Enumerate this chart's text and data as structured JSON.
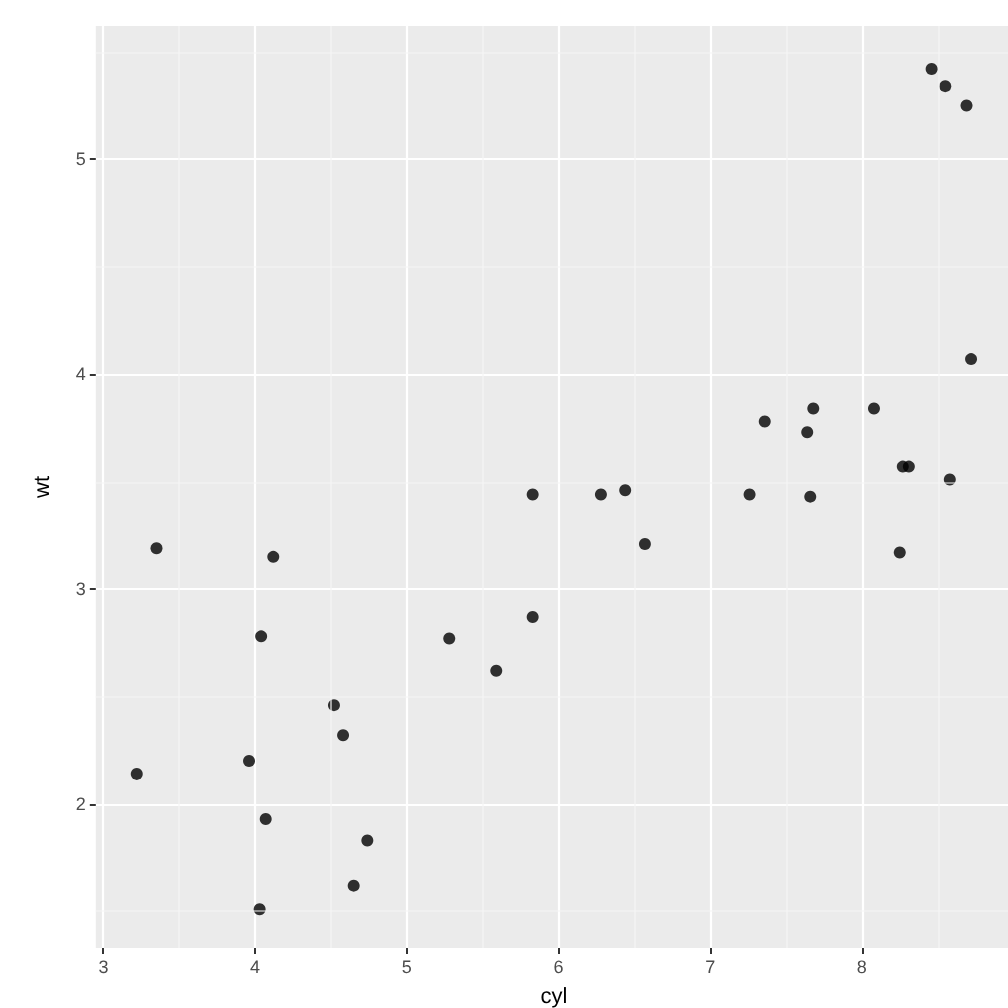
{
  "chart_data": {
    "type": "scatter",
    "xlabel": "cyl",
    "ylabel": "wt",
    "x": [
      3.35,
      4.12,
      4.04,
      5.28,
      5.59,
      4.52,
      4.58,
      3.96,
      3.22,
      4.07,
      4.74,
      4.65,
      4.03,
      6.57,
      8.25,
      5.83,
      8.46,
      8.55,
      8.69,
      8.72,
      7.68,
      8.08,
      7.36,
      7.64,
      8.27,
      8.31,
      8.58,
      5.83,
      6.28,
      6.44,
      7.26,
      7.66
    ],
    "values": [
      3.19,
      3.15,
      2.78,
      2.77,
      2.62,
      2.46,
      2.32,
      2.2,
      2.14,
      1.93,
      1.83,
      1.62,
      1.51,
      3.21,
      3.17,
      2.87,
      5.42,
      5.34,
      5.25,
      4.07,
      3.84,
      3.84,
      3.78,
      3.73,
      3.57,
      3.57,
      3.51,
      3.44,
      3.44,
      3.46,
      3.44,
      3.43
    ],
    "color": "#000000",
    "marker": "circle",
    "xlim": [
      2.95,
      8.99
    ],
    "xticks": [
      3,
      4,
      5,
      6,
      7,
      8
    ],
    "ylim": [
      1.33,
      5.62
    ],
    "yticks": [
      2,
      3,
      4,
      5
    ],
    "grid": true
  }
}
